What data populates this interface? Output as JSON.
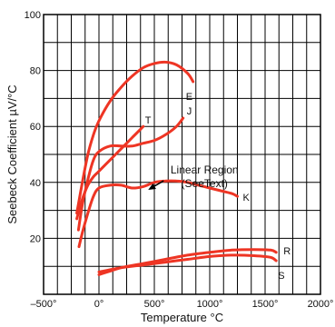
{
  "chart_data": {
    "type": "line",
    "title": "",
    "xlabel": "Temperature °C",
    "ylabel": "Seebeck Coefficient µV/°C",
    "xlim": [
      -500,
      2000
    ],
    "ylim": [
      0,
      100
    ],
    "x_minor_step": 125,
    "y_minor_step": 10,
    "grid": true,
    "legend": "none",
    "line_color": "#ee3524",
    "x_ticks": [
      {
        "value": -500,
        "label": "–500°"
      },
      {
        "value": 0,
        "label": "0°"
      },
      {
        "value": 500,
        "label": "500°"
      },
      {
        "value": 1000,
        "label": "1000°"
      },
      {
        "value": 1500,
        "label": "1500°"
      },
      {
        "value": 2000,
        "label": "2000°"
      }
    ],
    "y_ticks": [
      {
        "value": 20,
        "label": "20"
      },
      {
        "value": 40,
        "label": "40"
      },
      {
        "value": 60,
        "label": "60"
      },
      {
        "value": 80,
        "label": "80"
      },
      {
        "value": 100,
        "label": "100"
      }
    ],
    "series": [
      {
        "name": "E",
        "x": [
          -200,
          -150,
          -100,
          -50,
          0,
          100,
          200,
          300,
          400,
          500,
          600,
          700,
          800,
          850
        ],
        "y": [
          29,
          40,
          50,
          57,
          62,
          69,
          74,
          78,
          81,
          82.5,
          83,
          82,
          79,
          76
        ]
      },
      {
        "name": "J",
        "x": [
          -185,
          -150,
          -100,
          -50,
          0,
          100,
          200,
          300,
          400,
          500,
          600,
          700,
          760
        ],
        "y": [
          23,
          32,
          41,
          48,
          51,
          53,
          53,
          53,
          54,
          55,
          57,
          60,
          63
        ]
      },
      {
        "name": "T",
        "x": [
          -200,
          -150,
          -100,
          -50,
          0,
          100,
          200,
          300,
          400
        ],
        "y": [
          27,
          34,
          39,
          42,
          44,
          48,
          52,
          56,
          60
        ]
      },
      {
        "name": "K",
        "x": [
          -180,
          -150,
          -100,
          -50,
          0,
          100,
          200,
          300,
          400,
          500,
          600,
          700,
          800,
          900,
          1000,
          1100,
          1200,
          1250
        ],
        "y": [
          17,
          22,
          29,
          35,
          38,
          39,
          39,
          38,
          38.5,
          40,
          40.5,
          40.5,
          40,
          39,
          38,
          37,
          36,
          35
        ]
      },
      {
        "name": "R",
        "x": [
          0,
          200,
          400,
          600,
          800,
          1000,
          1200,
          1400,
          1550,
          1600
        ],
        "y": [
          7,
          9.5,
          11,
          12.5,
          14,
          15,
          15.8,
          16,
          15.8,
          15
        ]
      },
      {
        "name": "S",
        "x": [
          0,
          200,
          400,
          600,
          800,
          1000,
          1200,
          1400,
          1550,
          1600
        ],
        "y": [
          8,
          9.5,
          10.5,
          11.5,
          12.5,
          13.5,
          14,
          13.8,
          13.2,
          12
        ]
      }
    ],
    "annotation": {
      "line1": "Linear Region",
      "line2": "(SeeText)",
      "arrow_target": {
        "x": 420,
        "y": 37
      }
    }
  }
}
